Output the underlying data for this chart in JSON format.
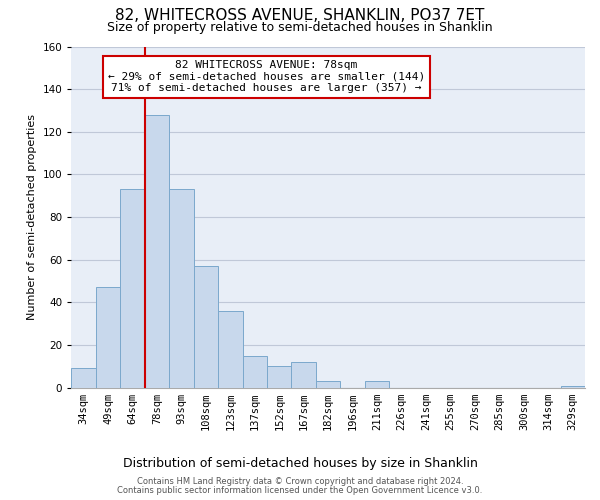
{
  "title": "82, WHITECROSS AVENUE, SHANKLIN, PO37 7ET",
  "subtitle": "Size of property relative to semi-detached houses in Shanklin",
  "xlabel": "Distribution of semi-detached houses by size in Shanklin",
  "ylabel": "Number of semi-detached properties",
  "categories": [
    "34sqm",
    "49sqm",
    "64sqm",
    "78sqm",
    "93sqm",
    "108sqm",
    "123sqm",
    "137sqm",
    "152sqm",
    "167sqm",
    "182sqm",
    "196sqm",
    "211sqm",
    "226sqm",
    "241sqm",
    "255sqm",
    "270sqm",
    "285sqm",
    "300sqm",
    "314sqm",
    "329sqm"
  ],
  "values": [
    9,
    47,
    93,
    128,
    93,
    57,
    36,
    15,
    10,
    12,
    3,
    0,
    3,
    0,
    0,
    0,
    0,
    0,
    0,
    0,
    1
  ],
  "bar_color": "#c8d8ec",
  "bar_edge_color": "#7ba8cc",
  "vline_index": 3,
  "vline_color": "#cc0000",
  "ylim": [
    0,
    160
  ],
  "yticks": [
    0,
    20,
    40,
    60,
    80,
    100,
    120,
    140,
    160
  ],
  "annotation_line1": "82 WHITECROSS AVENUE: 78sqm",
  "annotation_line2": "← 29% of semi-detached houses are smaller (144)",
  "annotation_line3": "71% of semi-detached houses are larger (357) →",
  "annotation_box_color": "#ffffff",
  "annotation_box_edge_color": "#cc0000",
  "footer_line1": "Contains HM Land Registry data © Crown copyright and database right 2024.",
  "footer_line2": "Contains public sector information licensed under the Open Government Licence v3.0.",
  "background_color": "#ffffff",
  "plot_bg_color": "#e8eef7",
  "grid_color": "#c0c8d8",
  "title_fontsize": 11,
  "subtitle_fontsize": 9,
  "xlabel_fontsize": 9,
  "ylabel_fontsize": 8,
  "tick_fontsize": 7.5,
  "annot_fontsize": 8,
  "footer_fontsize": 6
}
